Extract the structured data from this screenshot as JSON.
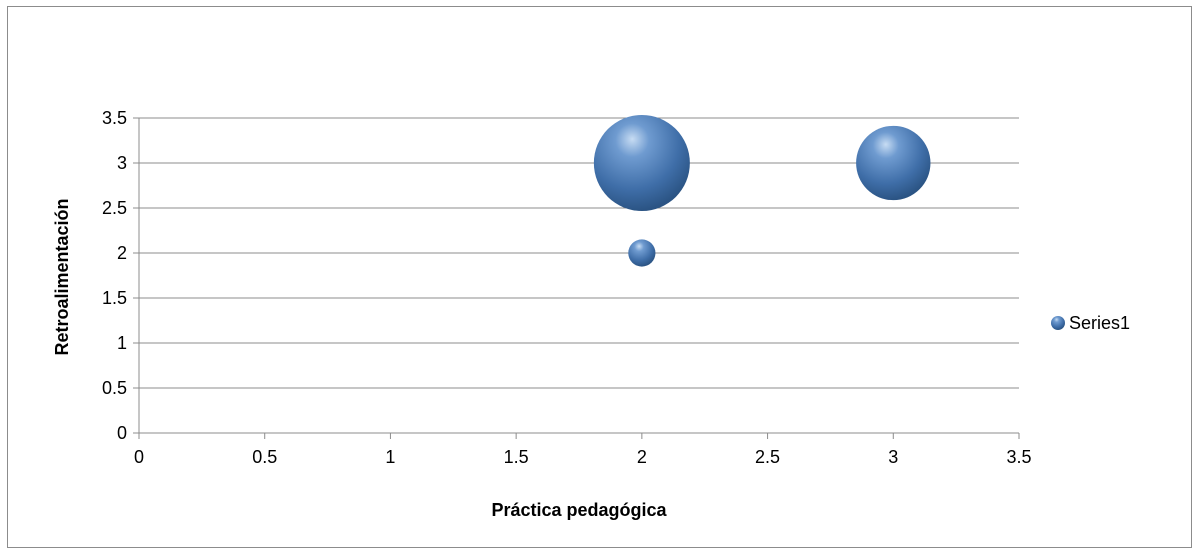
{
  "chart_data": {
    "type": "bubble",
    "title": "",
    "xlabel": "Práctica pedagógica",
    "ylabel": "Retroalimentación",
    "xlim": [
      0,
      3.5
    ],
    "ylim": [
      0,
      3.5
    ],
    "xticks": [
      "0",
      "0.5",
      "1",
      "1.5",
      "2",
      "2.5",
      "3",
      "3.5"
    ],
    "yticks": [
      "0",
      "0.5",
      "1",
      "1.5",
      "2",
      "2.5",
      "3",
      "3.5"
    ],
    "grid": "horizontal",
    "legend_position": "right",
    "series": [
      {
        "name": "Series1",
        "color": "#4f81bd",
        "points": [
          {
            "x": 2,
            "y": 3,
            "size": 1.0
          },
          {
            "x": 3,
            "y": 3,
            "size": 0.6
          },
          {
            "x": 2,
            "y": 2,
            "size": 0.08
          }
        ]
      }
    ]
  }
}
